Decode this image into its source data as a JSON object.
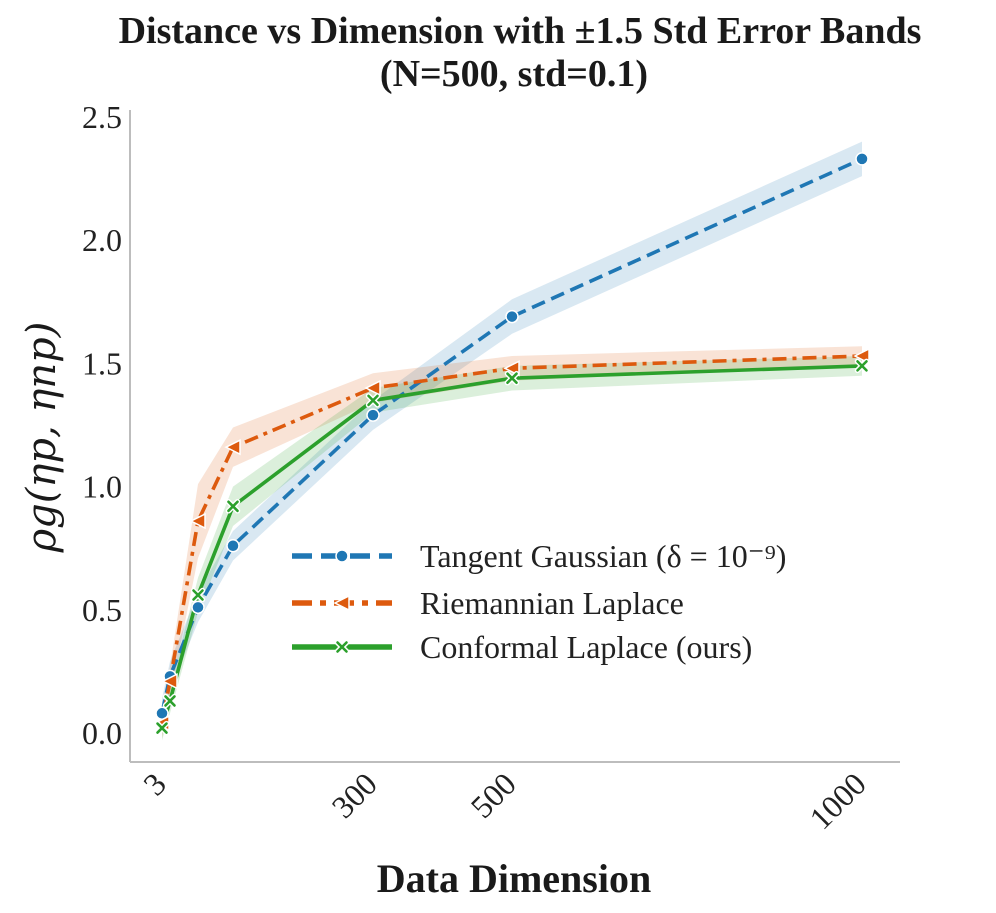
{
  "chart_data": {
    "type": "line",
    "title": "Distance vs Dimension with ±1.5 Std Error Bands",
    "subtitle": "(N=500, std=0.1)",
    "xlabel": "Data Dimension",
    "ylabel": "ρg(ηp, ηnp)",
    "x": [
      3,
      10,
      50,
      100,
      300,
      500,
      1000
    ],
    "x_tick_labels": [
      "3",
      "300",
      "500",
      "1000"
    ],
    "x_ticks": [
      3,
      300,
      500,
      1000
    ],
    "y_ticks": [
      0.0,
      0.5,
      1.0,
      1.5,
      2.0,
      2.5
    ],
    "y_tick_labels": [
      "0.0",
      "0.5",
      "1.0",
      "1.5",
      "2.0",
      "2.5"
    ],
    "xlim": [
      -25,
      1060
    ],
    "ylim": [
      -0.12,
      2.5
    ],
    "grid": false,
    "legend_position": "center-right",
    "series": [
      {
        "name": "Tangent Gaussian (δ = 10⁻⁹)",
        "color": "#1f77b4",
        "marker": "circle",
        "linestyle": "dashed",
        "values": [
          0.08,
          0.23,
          0.51,
          0.76,
          1.29,
          1.69,
          2.33
        ],
        "band": [
          0.06,
          0.06,
          0.06,
          0.06,
          0.06,
          0.07,
          0.07
        ]
      },
      {
        "name": "Riemannian Laplace",
        "color": "#dd5a0e",
        "marker": "triangle-left",
        "linestyle": "dashdot",
        "values": [
          0.04,
          0.21,
          0.86,
          1.16,
          1.4,
          1.48,
          1.53
        ],
        "band": [
          0.06,
          0.06,
          0.15,
          0.08,
          0.06,
          0.05,
          0.04
        ]
      },
      {
        "name": "Conformal Laplace (ours)",
        "color": "#2ca02c",
        "marker": "x",
        "linestyle": "solid",
        "values": [
          0.02,
          0.13,
          0.56,
          0.92,
          1.35,
          1.44,
          1.49
        ],
        "band": [
          0.05,
          0.05,
          0.07,
          0.08,
          0.05,
          0.05,
          0.04
        ]
      }
    ]
  }
}
